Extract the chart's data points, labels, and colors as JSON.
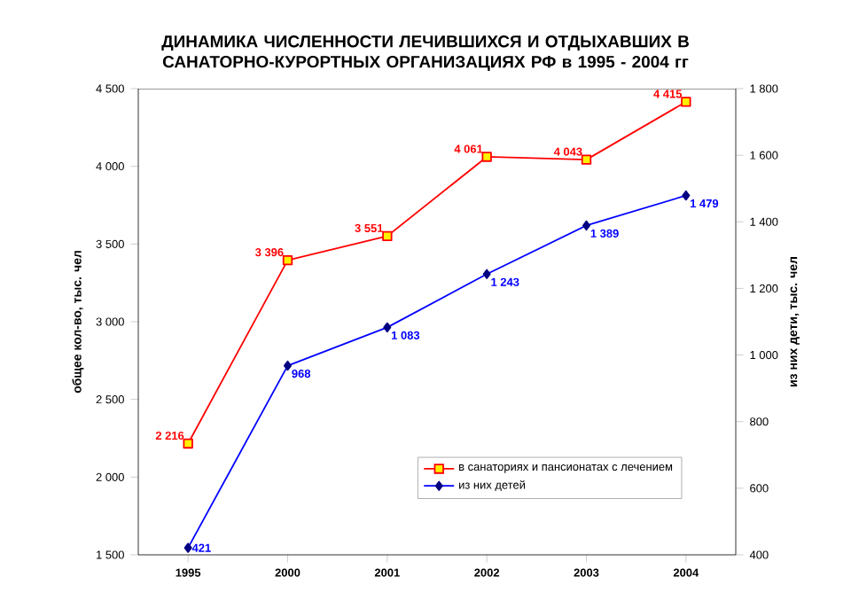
{
  "chart_data": {
    "type": "line",
    "title": "ДИНАМИКА ЧИСЛЕННОСТИ ЛЕЧИВШИХСЯ И ОТДЫХАВШИХ В САНАТОРНО-КУРОРТНЫХ ОРГАНИЗАЦИЯХ РФ в 1995 - 2004 гг",
    "ylabel": "общее кол-во, тыс. чел",
    "y2label": "из них дети, тыс. чел",
    "categories": [
      "1995",
      "2000",
      "2001",
      "2002",
      "2003",
      "2004"
    ],
    "series": [
      {
        "name": "в санаториях и пансионатах с лечением",
        "color": "#ff0000",
        "marker": "square",
        "values": [
          2216,
          3396,
          3551,
          4061,
          4043,
          4415
        ],
        "value_labels": [
          "2 216",
          "3 396",
          "3 551",
          "4 061",
          "4 043",
          "4 415"
        ]
      },
      {
        "name": "из них детей",
        "color": "#0000ff",
        "marker": "diamond",
        "axis": "y2",
        "values": [
          421,
          968,
          1083,
          1243,
          1389,
          1479
        ],
        "value_labels": [
          "421",
          "968",
          "1 083",
          "1 243",
          "1 389",
          "1 479"
        ]
      }
    ],
    "ylim": [
      1500,
      4500
    ],
    "yticks": [
      {
        "value": 1500,
        "label": "1 500"
      },
      {
        "value": 2000,
        "label": "2 000"
      },
      {
        "value": 2500,
        "label": "2 500"
      },
      {
        "value": 3000,
        "label": "3 000"
      },
      {
        "value": 3500,
        "label": "3 500"
      },
      {
        "value": 4000,
        "label": "4 000"
      },
      {
        "value": 4500,
        "label": "4 500"
      }
    ],
    "y2lim": [
      400,
      1800
    ],
    "y2ticks": [
      400,
      600,
      800,
      {
        "value": 1000,
        "label": "1 000"
      },
      {
        "value": 1200,
        "label": "1 200"
      },
      {
        "value": 1400,
        "label": "1 400"
      },
      {
        "value": 1600,
        "label": "1 600"
      },
      {
        "value": 1800,
        "label": "1 800"
      }
    ],
    "grid": false,
    "legend": "bottom right"
  }
}
